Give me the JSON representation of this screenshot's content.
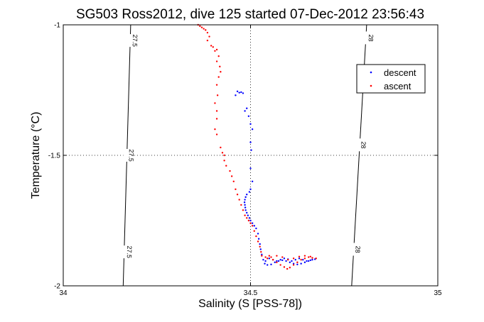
{
  "chart_data": {
    "type": "scatter",
    "title": "SG503 Ross2012, dive 125 started 07-Dec-2012 23:56:43",
    "xlabel": "Salinity (S [PSS-78])",
    "ylabel": "Temperature (°C)",
    "xlim": [
      34,
      35
    ],
    "ylim": [
      -2,
      -1
    ],
    "x_ticks": [
      "34",
      "34.5",
      "35"
    ],
    "y_ticks": [
      "-2",
      "-1.5",
      "-1"
    ],
    "grid": "dotted",
    "legend_position": "top-right",
    "density_contours": [
      {
        "label": "27.5",
        "points": [
          [
            34.18,
            -1.0
          ],
          [
            34.16,
            -2.0
          ]
        ],
        "label_positions": [
          [
            34.18,
            -1.06
          ],
          [
            34.17,
            -1.5
          ],
          [
            34.165,
            -1.87
          ]
        ]
      },
      {
        "label": "28",
        "points": [
          [
            34.81,
            -1.0
          ],
          [
            34.77,
            -2.0
          ]
        ],
        "label_positions": [
          [
            34.81,
            -1.05
          ],
          [
            34.79,
            -1.46
          ],
          [
            34.775,
            -1.86
          ]
        ]
      }
    ],
    "series": [
      {
        "name": "descent",
        "color": "#0000ff",
        "points": [
          [
            34.47,
            -1.26
          ],
          [
            34.465,
            -1.255
          ],
          [
            34.475,
            -1.258
          ],
          [
            34.48,
            -1.262
          ],
          [
            34.46,
            -1.27
          ],
          [
            34.485,
            -1.33
          ],
          [
            34.49,
            -1.32
          ],
          [
            34.495,
            -1.35
          ],
          [
            34.5,
            -1.38
          ],
          [
            34.505,
            -1.4
          ],
          [
            34.5,
            -1.45
          ],
          [
            34.502,
            -1.48
          ],
          [
            34.5,
            -1.55
          ],
          [
            34.505,
            -1.6
          ],
          [
            34.5,
            -1.63
          ],
          [
            34.497,
            -1.64
          ],
          [
            34.49,
            -1.65
          ],
          [
            34.487,
            -1.66
          ],
          [
            34.485,
            -1.67
          ],
          [
            34.484,
            -1.68
          ],
          [
            34.485,
            -1.69
          ],
          [
            34.486,
            -1.7
          ],
          [
            34.487,
            -1.71
          ],
          [
            34.49,
            -1.72
          ],
          [
            34.493,
            -1.73
          ],
          [
            34.497,
            -1.74
          ],
          [
            34.5,
            -1.75
          ],
          [
            34.505,
            -1.76
          ],
          [
            34.51,
            -1.77
          ],
          [
            34.515,
            -1.78
          ],
          [
            34.52,
            -1.8
          ],
          [
            34.522,
            -1.82
          ],
          [
            34.525,
            -1.84
          ],
          [
            34.527,
            -1.86
          ],
          [
            34.53,
            -1.88
          ],
          [
            34.534,
            -1.9
          ],
          [
            34.538,
            -1.915
          ],
          [
            34.545,
            -1.92
          ],
          [
            34.555,
            -1.918
          ],
          [
            34.565,
            -1.91
          ],
          [
            34.575,
            -1.905
          ],
          [
            34.585,
            -1.902
          ],
          [
            34.595,
            -1.905
          ],
          [
            34.605,
            -1.91
          ],
          [
            34.615,
            -1.915
          ],
          [
            34.625,
            -1.918
          ],
          [
            34.635,
            -1.915
          ],
          [
            34.645,
            -1.91
          ],
          [
            34.655,
            -1.905
          ],
          [
            34.665,
            -1.9
          ],
          [
            34.672,
            -1.898
          ],
          [
            34.66,
            -1.902
          ],
          [
            34.65,
            -1.905
          ],
          [
            34.64,
            -1.9
          ],
          [
            34.63,
            -1.895
          ],
          [
            34.62,
            -1.9
          ],
          [
            34.61,
            -1.905
          ],
          [
            34.6,
            -1.898
          ],
          [
            34.59,
            -1.895
          ],
          [
            34.58,
            -1.9
          ],
          [
            34.57,
            -1.905
          ],
          [
            34.56,
            -1.9
          ],
          [
            34.55,
            -1.895
          ],
          [
            34.54,
            -1.905
          ]
        ]
      },
      {
        "name": "ascent",
        "color": "#ff0000",
        "points": [
          [
            34.36,
            -1.0
          ],
          [
            34.365,
            -1.005
          ],
          [
            34.37,
            -1.01
          ],
          [
            34.375,
            -1.015
          ],
          [
            34.38,
            -1.02
          ],
          [
            34.385,
            -1.03
          ],
          [
            34.39,
            -1.045
          ],
          [
            34.385,
            -1.06
          ],
          [
            34.395,
            -1.08
          ],
          [
            34.4,
            -1.085
          ],
          [
            34.405,
            -1.1
          ],
          [
            34.41,
            -1.095
          ],
          [
            34.415,
            -1.12
          ],
          [
            34.41,
            -1.14
          ],
          [
            34.418,
            -1.16
          ],
          [
            34.42,
            -1.18
          ],
          [
            34.415,
            -1.2
          ],
          [
            34.41,
            -1.23
          ],
          [
            34.412,
            -1.27
          ],
          [
            34.405,
            -1.3
          ],
          [
            34.41,
            -1.33
          ],
          [
            34.41,
            -1.36
          ],
          [
            34.405,
            -1.4
          ],
          [
            34.41,
            -1.42
          ],
          [
            34.42,
            -1.47
          ],
          [
            34.425,
            -1.49
          ],
          [
            34.43,
            -1.5
          ],
          [
            34.43,
            -1.52
          ],
          [
            34.435,
            -1.54
          ],
          [
            34.445,
            -1.56
          ],
          [
            34.45,
            -1.58
          ],
          [
            34.455,
            -1.6
          ],
          [
            34.46,
            -1.63
          ],
          [
            34.465,
            -1.65
          ],
          [
            34.47,
            -1.67
          ],
          [
            34.475,
            -1.69
          ],
          [
            34.48,
            -1.71
          ],
          [
            34.485,
            -1.73
          ],
          [
            34.49,
            -1.74
          ],
          [
            34.495,
            -1.75
          ],
          [
            34.5,
            -1.76
          ],
          [
            34.505,
            -1.77
          ],
          [
            34.51,
            -1.79
          ],
          [
            34.515,
            -1.81
          ],
          [
            34.52,
            -1.83
          ],
          [
            34.525,
            -1.85
          ],
          [
            34.528,
            -1.87
          ],
          [
            34.53,
            -1.885
          ],
          [
            34.54,
            -1.89
          ],
          [
            34.55,
            -1.885
          ],
          [
            34.56,
            -1.9
          ],
          [
            34.57,
            -1.91
          ],
          [
            34.58,
            -1.92
          ],
          [
            34.59,
            -1.928
          ],
          [
            34.598,
            -1.935
          ],
          [
            34.605,
            -1.93
          ],
          [
            34.615,
            -1.92
          ],
          [
            34.625,
            -1.91
          ],
          [
            34.635,
            -1.9
          ],
          [
            34.645,
            -1.895
          ],
          [
            34.655,
            -1.89
          ],
          [
            34.665,
            -1.893
          ],
          [
            34.675,
            -1.895
          ],
          [
            34.66,
            -1.888
          ],
          [
            34.645,
            -1.885
          ],
          [
            34.63,
            -1.888
          ],
          [
            34.615,
            -1.895
          ],
          [
            34.6,
            -1.9
          ],
          [
            34.585,
            -1.89
          ],
          [
            34.57,
            -1.885
          ],
          [
            34.555,
            -1.89
          ],
          [
            34.545,
            -1.895
          ]
        ]
      }
    ]
  }
}
